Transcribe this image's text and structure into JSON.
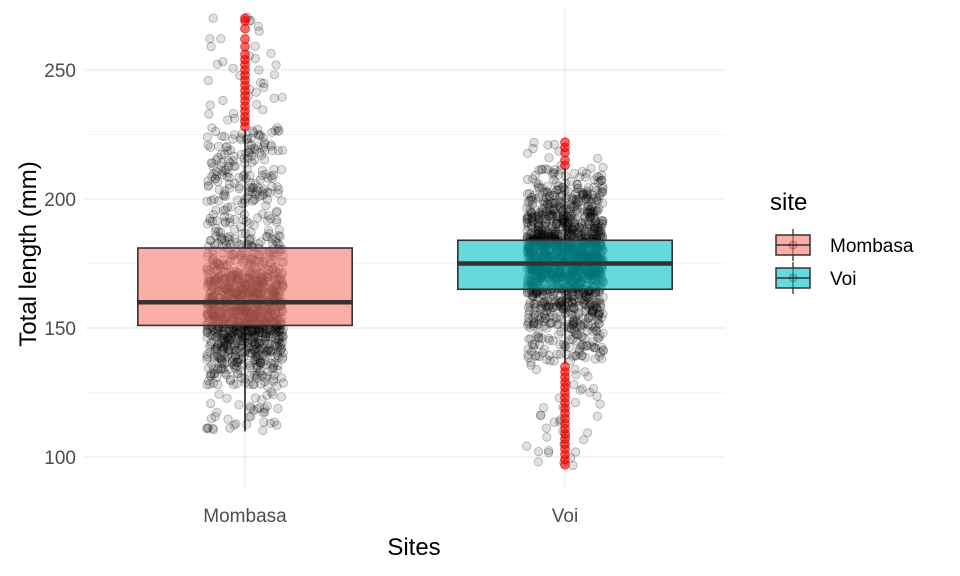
{
  "chart_data": {
    "type": "boxplot",
    "xlabel": "Sites",
    "ylabel": "Total length (mm)",
    "categories": [
      "Mombasa",
      "Voi"
    ],
    "ylim": [
      88,
      274
    ],
    "y_ticks": [
      100,
      150,
      200,
      250
    ],
    "grid": true,
    "legend": {
      "title": "site",
      "position": "right",
      "entries": [
        "Mombasa",
        "Voi"
      ]
    },
    "colors": {
      "Mombasa": "#f8766d",
      "Voi": "#00bfc4",
      "outlier": "#ff0000",
      "jitter": "#000000"
    },
    "boxes": [
      {
        "name": "Mombasa",
        "min": 110,
        "q1": 151,
        "median": 160,
        "q3": 181,
        "max": 227,
        "outliers": [
          228,
          230,
          232,
          234,
          236,
          238,
          240,
          242,
          244,
          246,
          248,
          250,
          252,
          254,
          256,
          259,
          262,
          266,
          269,
          270
        ]
      },
      {
        "name": "Voi",
        "min": 136,
        "q1": 165,
        "median": 175,
        "q3": 184,
        "max": 212,
        "outliers": [
          97,
          99,
          101,
          103,
          105,
          107,
          109,
          111,
          113,
          115,
          117,
          119,
          121,
          123,
          125,
          127,
          129,
          131,
          133,
          135,
          213,
          215,
          218,
          220,
          222
        ]
      }
    ],
    "jitter_points": [
      {
        "name": "Mombasa",
        "n": 1500,
        "y_range": [
          110,
          270
        ],
        "dense_center": 156
      },
      {
        "name": "Voi",
        "n": 1800,
        "y_range": [
          97,
          222
        ],
        "dense_center": 177
      }
    ]
  }
}
